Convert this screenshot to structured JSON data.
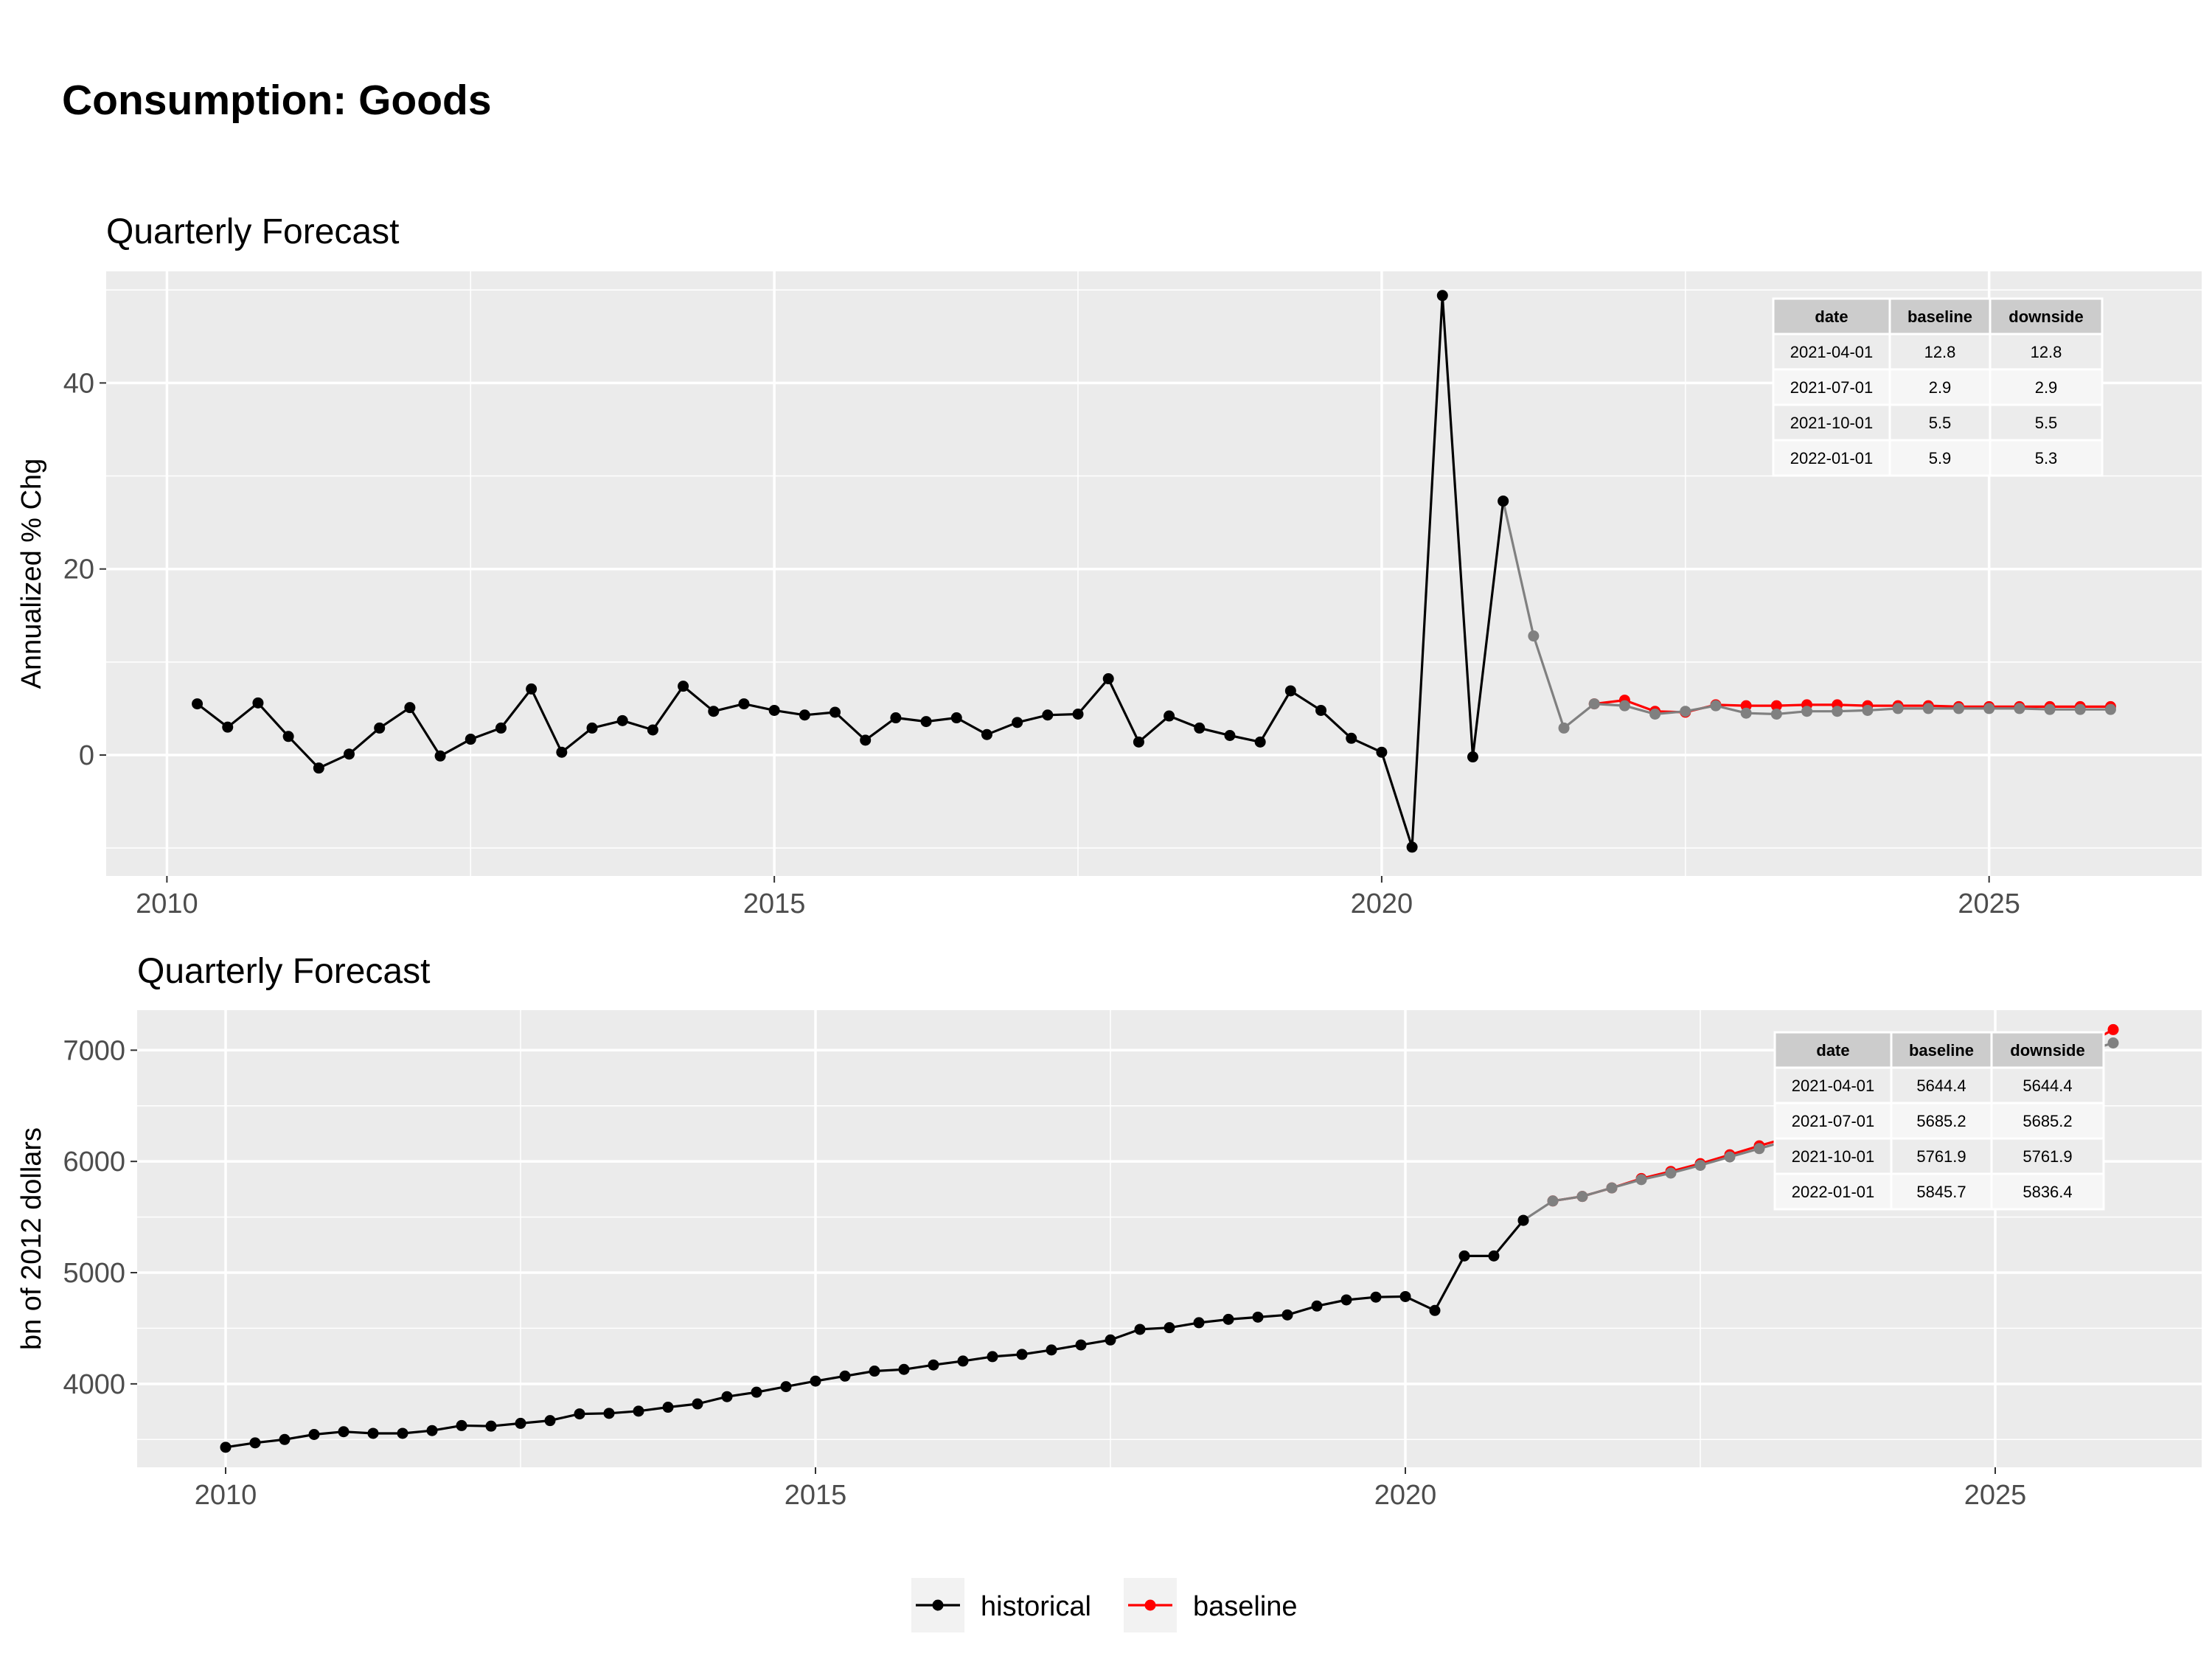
{
  "title": "Consumption: Goods",
  "colors": {
    "historical": "#000000",
    "baseline": "#ff0000",
    "downside": "#808080",
    "panel": "#ebebeb",
    "grid": "#ffffff"
  },
  "legend": {
    "position": "bottom",
    "items": [
      {
        "label": "historical",
        "color": "#000000"
      },
      {
        "label": "baseline",
        "color": "#ff0000"
      }
    ]
  },
  "chart_data": [
    {
      "type": "line",
      "title": "Quarterly Forecast",
      "ylabel": "Annualized % Chg",
      "xlabel": "",
      "xlim": [
        "2009-07-01",
        "2026-10-01"
      ],
      "ylim": [
        -13,
        52
      ],
      "x_ticks": [
        "2010",
        "2015",
        "2020",
        "2025"
      ],
      "y_ticks": [
        0,
        20,
        40
      ],
      "grid": true,
      "series": [
        {
          "name": "historical",
          "color": "#000000",
          "points": [
            [
              "2010-04-01",
              5.5
            ],
            [
              "2010-07-01",
              3.0
            ],
            [
              "2010-10-01",
              5.6
            ],
            [
              "2011-01-01",
              2.0
            ],
            [
              "2011-04-01",
              -1.4
            ],
            [
              "2011-07-01",
              0.1
            ],
            [
              "2011-10-01",
              2.9
            ],
            [
              "2012-01-01",
              5.1
            ],
            [
              "2012-04-01",
              -0.1
            ],
            [
              "2012-07-01",
              1.7
            ],
            [
              "2012-10-01",
              2.9
            ],
            [
              "2013-01-01",
              7.1
            ],
            [
              "2013-04-01",
              0.3
            ],
            [
              "2013-07-01",
              2.9
            ],
            [
              "2013-10-01",
              3.7
            ],
            [
              "2014-01-01",
              2.7
            ],
            [
              "2014-04-01",
              7.4
            ],
            [
              "2014-07-01",
              4.7
            ],
            [
              "2014-10-01",
              5.5
            ],
            [
              "2015-01-01",
              4.8
            ],
            [
              "2015-04-01",
              4.3
            ],
            [
              "2015-07-01",
              4.6
            ],
            [
              "2015-10-01",
              1.6
            ],
            [
              "2016-01-01",
              4.0
            ],
            [
              "2016-04-01",
              3.6
            ],
            [
              "2016-07-01",
              4.0
            ],
            [
              "2016-10-01",
              2.2
            ],
            [
              "2017-01-01",
              3.5
            ],
            [
              "2017-04-01",
              4.3
            ],
            [
              "2017-07-01",
              4.4
            ],
            [
              "2017-10-01",
              8.2
            ],
            [
              "2018-01-01",
              1.4
            ],
            [
              "2018-04-01",
              4.2
            ],
            [
              "2018-07-01",
              2.9
            ],
            [
              "2018-10-01",
              2.1
            ],
            [
              "2019-01-01",
              1.4
            ],
            [
              "2019-04-01",
              6.9
            ],
            [
              "2019-07-01",
              4.8
            ],
            [
              "2019-10-01",
              1.8
            ],
            [
              "2020-01-01",
              0.3
            ],
            [
              "2020-04-01",
              -9.9
            ],
            [
              "2020-07-01",
              49.4
            ],
            [
              "2020-10-01",
              -0.2
            ],
            [
              "2021-01-01",
              27.3
            ]
          ]
        },
        {
          "name": "baseline",
          "color": "#ff0000",
          "points": [
            [
              "2021-10-01",
              5.5
            ],
            [
              "2022-01-01",
              5.9
            ],
            [
              "2022-04-01",
              4.7
            ],
            [
              "2022-07-01",
              4.6
            ],
            [
              "2022-10-01",
              5.4
            ],
            [
              "2023-01-01",
              5.3
            ],
            [
              "2023-04-01",
              5.3
            ],
            [
              "2023-07-01",
              5.4
            ],
            [
              "2023-10-01",
              5.4
            ],
            [
              "2024-01-01",
              5.3
            ],
            [
              "2024-04-01",
              5.3
            ],
            [
              "2024-07-01",
              5.3
            ],
            [
              "2024-10-01",
              5.2
            ],
            [
              "2025-01-01",
              5.2
            ],
            [
              "2025-04-01",
              5.2
            ],
            [
              "2025-07-01",
              5.2
            ],
            [
              "2025-10-01",
              5.2
            ],
            [
              "2026-01-01",
              5.2
            ]
          ]
        },
        {
          "name": "downside",
          "color": "#808080",
          "points": [
            [
              "2021-01-01",
              27.3
            ],
            [
              "2021-04-01",
              12.8
            ],
            [
              "2021-07-01",
              2.9
            ],
            [
              "2021-10-01",
              5.5
            ],
            [
              "2022-01-01",
              5.3
            ],
            [
              "2022-04-01",
              4.4
            ],
            [
              "2022-07-01",
              4.7
            ],
            [
              "2022-10-01",
              5.3
            ],
            [
              "2023-01-01",
              4.5
            ],
            [
              "2023-04-01",
              4.4
            ],
            [
              "2023-07-01",
              4.7
            ],
            [
              "2023-10-01",
              4.7
            ],
            [
              "2024-01-01",
              4.8
            ],
            [
              "2024-04-01",
              5.0
            ],
            [
              "2024-07-01",
              5.0
            ],
            [
              "2024-10-01",
              5.0
            ],
            [
              "2025-01-01",
              5.0
            ],
            [
              "2025-04-01",
              5.0
            ],
            [
              "2025-07-01",
              4.9
            ],
            [
              "2025-10-01",
              4.9
            ],
            [
              "2026-01-01",
              4.9
            ]
          ]
        }
      ],
      "table": {
        "headers": [
          "date",
          "baseline",
          "downside"
        ],
        "rows": [
          [
            "2021-04-01",
            "12.8",
            "12.8"
          ],
          [
            "2021-07-01",
            "2.9",
            "2.9"
          ],
          [
            "2021-10-01",
            "5.5",
            "5.5"
          ],
          [
            "2022-01-01",
            "5.9",
            "5.3"
          ]
        ]
      }
    },
    {
      "type": "line",
      "title": "Quarterly Forecast",
      "ylabel": "bn of 2012 dollars",
      "xlabel": "",
      "xlim": [
        "2009-04-01",
        "2026-10-01"
      ],
      "ylim": [
        3250,
        7360
      ],
      "x_ticks": [
        "2010",
        "2015",
        "2020",
        "2025"
      ],
      "y_ticks": [
        4000,
        5000,
        6000,
        7000
      ],
      "grid": true,
      "series": [
        {
          "name": "historical",
          "color": "#000000",
          "points": [
            [
              "2010-01-01",
              3430
            ],
            [
              "2010-04-01",
              3470
            ],
            [
              "2010-07-01",
              3500
            ],
            [
              "2010-10-01",
              3545
            ],
            [
              "2011-01-01",
              3570
            ],
            [
              "2011-04-01",
              3555
            ],
            [
              "2011-07-01",
              3555
            ],
            [
              "2011-10-01",
              3580
            ],
            [
              "2012-01-01",
              3625
            ],
            [
              "2012-04-01",
              3620
            ],
            [
              "2012-07-01",
              3645
            ],
            [
              "2012-10-01",
              3670
            ],
            [
              "2013-01-01",
              3730
            ],
            [
              "2013-04-01",
              3735
            ],
            [
              "2013-07-01",
              3755
            ],
            [
              "2013-10-01",
              3790
            ],
            [
              "2014-01-01",
              3820
            ],
            [
              "2014-04-01",
              3885
            ],
            [
              "2014-07-01",
              3925
            ],
            [
              "2014-10-01",
              3975
            ],
            [
              "2015-01-01",
              4025
            ],
            [
              "2015-04-01",
              4070
            ],
            [
              "2015-07-01",
              4115
            ],
            [
              "2015-10-01",
              4130
            ],
            [
              "2016-01-01",
              4170
            ],
            [
              "2016-04-01",
              4205
            ],
            [
              "2016-07-01",
              4245
            ],
            [
              "2016-10-01",
              4265
            ],
            [
              "2017-01-01",
              4305
            ],
            [
              "2017-04-01",
              4350
            ],
            [
              "2017-07-01",
              4395
            ],
            [
              "2017-10-01",
              4490
            ],
            [
              "2018-01-01",
              4505
            ],
            [
              "2018-04-01",
              4550
            ],
            [
              "2018-07-01",
              4580
            ],
            [
              "2018-10-01",
              4600
            ],
            [
              "2019-01-01",
              4620
            ],
            [
              "2019-04-01",
              4700
            ],
            [
              "2019-07-01",
              4755
            ],
            [
              "2019-10-01",
              4780
            ],
            [
              "2020-01-01",
              4785
            ],
            [
              "2020-04-01",
              4660
            ],
            [
              "2020-07-01",
              5150
            ],
            [
              "2020-10-01",
              5150
            ],
            [
              "2021-01-01",
              5470
            ]
          ]
        },
        {
          "name": "baseline",
          "color": "#ff0000",
          "points": [
            [
              "2021-04-01",
              5644.4
            ],
            [
              "2021-07-01",
              5685.2
            ],
            [
              "2021-10-01",
              5761.9
            ],
            [
              "2022-01-01",
              5845.7
            ],
            [
              "2022-04-01",
              5910
            ],
            [
              "2022-07-01",
              5980
            ],
            [
              "2022-10-01",
              6060
            ],
            [
              "2023-01-01",
              6140
            ],
            [
              "2023-04-01",
              6215
            ],
            [
              "2023-07-01",
              6295
            ],
            [
              "2023-10-01",
              6375
            ],
            [
              "2024-01-01",
              6455
            ],
            [
              "2024-04-01",
              6535
            ],
            [
              "2024-07-01",
              6615
            ],
            [
              "2024-10-01",
              6700
            ],
            [
              "2025-01-01",
              6785
            ],
            [
              "2025-04-01",
              6870
            ],
            [
              "2025-07-01",
              6955
            ],
            [
              "2025-10-01",
              7040
            ],
            [
              "2026-01-01",
              7185
            ]
          ]
        },
        {
          "name": "downside",
          "color": "#808080",
          "points": [
            [
              "2021-01-01",
              5470
            ],
            [
              "2021-04-01",
              5644.4
            ],
            [
              "2021-07-01",
              5685.2
            ],
            [
              "2021-10-01",
              5761.9
            ],
            [
              "2022-01-01",
              5836.4
            ],
            [
              "2022-04-01",
              5895
            ],
            [
              "2022-07-01",
              5965
            ],
            [
              "2022-10-01",
              6040
            ],
            [
              "2023-01-01",
              6115
            ],
            [
              "2023-04-01",
              6190
            ],
            [
              "2023-07-01",
              6265
            ],
            [
              "2023-10-01",
              6345
            ],
            [
              "2024-01-01",
              6425
            ],
            [
              "2024-04-01",
              6505
            ],
            [
              "2024-07-01",
              6585
            ],
            [
              "2024-10-01",
              6665
            ],
            [
              "2025-01-01",
              6745
            ],
            [
              "2025-04-01",
              6825
            ],
            [
              "2025-07-01",
              6905
            ],
            [
              "2025-10-01",
              6985
            ],
            [
              "2026-01-01",
              7065
            ]
          ]
        }
      ],
      "table": {
        "headers": [
          "date",
          "baseline",
          "downside"
        ],
        "rows": [
          [
            "2021-04-01",
            "5644.4",
            "5644.4"
          ],
          [
            "2021-07-01",
            "5685.2",
            "5685.2"
          ],
          [
            "2021-10-01",
            "5761.9",
            "5761.9"
          ],
          [
            "2022-01-01",
            "5845.7",
            "5836.4"
          ]
        ]
      }
    }
  ]
}
